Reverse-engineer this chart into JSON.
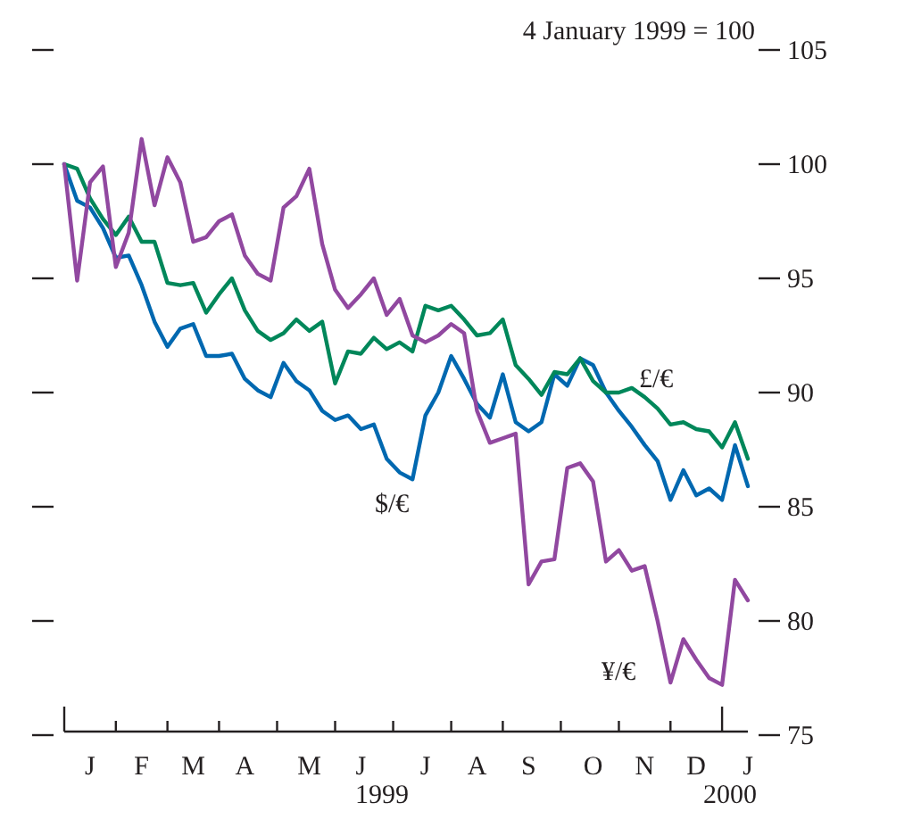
{
  "chart_data": {
    "type": "line",
    "annotations": [
      "4 January 1999 = 100",
      "1999",
      "2000"
    ],
    "categories": [
      null,
      null,
      "J",
      null,
      null,
      null,
      "F",
      null,
      null,
      null,
      "M",
      null,
      null,
      null,
      "A",
      null,
      null,
      null,
      null,
      "M",
      null,
      null,
      null,
      "J",
      null,
      null,
      null,
      null,
      "J",
      null,
      null,
      null,
      "A",
      null,
      null,
      null,
      "S",
      null,
      null,
      null,
      null,
      "O",
      null,
      null,
      null,
      "N",
      null,
      null,
      null,
      "D",
      null,
      null,
      null,
      "J"
    ],
    "ylim": [
      75,
      105
    ],
    "yticks": [
      75,
      80,
      85,
      90,
      95,
      100,
      105
    ],
    "grid": false,
    "legend": false,
    "line_style": "solid",
    "marker": "none",
    "series": [
      {
        "name": "$/€",
        "color": "#0068b0",
        "values": [
          100,
          98.4,
          98.1,
          97.2,
          95.9,
          96,
          94.7,
          93.1,
          92.0,
          92.8,
          93.0,
          91.6,
          91.6,
          91.7,
          90.6,
          90.1,
          89.8,
          91.3,
          90.5,
          90.1,
          89.2,
          88.8,
          89,
          88.4,
          88.6,
          87.1,
          86.5,
          86.2,
          89,
          90.0,
          91.6,
          90.6,
          89.5,
          88.9,
          90.8,
          88.7,
          88.3,
          88.7,
          90.8,
          90.3,
          91.5,
          91.2,
          90,
          89.2,
          88.5,
          87.7,
          87.0,
          85.3,
          86.6,
          85.5,
          85.8,
          85.3,
          87.7,
          85.9
        ]
      },
      {
        "name": "£/€",
        "color": "#00875a",
        "values": [
          100,
          99.8,
          98.5,
          97.6,
          96.9,
          97.7,
          96.6,
          96.6,
          94.8,
          94.7,
          94.8,
          93.5,
          94.3,
          95.0,
          93.6,
          92.7,
          92.3,
          92.6,
          93.2,
          92.7,
          93.1,
          90.4,
          91.8,
          91.7,
          92.4,
          91.9,
          92.2,
          91.8,
          93.8,
          93.6,
          93.8,
          93.2,
          92.5,
          92.6,
          93.2,
          91.2,
          90.6,
          89.9,
          90.9,
          90.8,
          91.5,
          90.5,
          90.0,
          90.0,
          90.2,
          89.8,
          89.3,
          88.6,
          88.7,
          88.4,
          88.3,
          87.6,
          88.7,
          87.1
        ]
      },
      {
        "name": "¥/€",
        "color": "#9148a0",
        "values": [
          100,
          94.9,
          99.2,
          99.9,
          95.5,
          97.0,
          101.1,
          98.2,
          100.3,
          99.2,
          96.6,
          96.8,
          97.5,
          97.8,
          96,
          95.2,
          94.9,
          98.1,
          98.6,
          99.8,
          96.5,
          94.5,
          93.7,
          94.3,
          95.0,
          93.4,
          94.1,
          92.5,
          92.2,
          92.5,
          93.0,
          92.6,
          89.2,
          87.8,
          88.0,
          88.2,
          81.6,
          82.6,
          82.7,
          86.7,
          86.9,
          86.1,
          82.6,
          83.1,
          82.2,
          82.4,
          80,
          77.3,
          79.2,
          78.3,
          77.5,
          77.2,
          81.8,
          80.9
        ]
      }
    ]
  }
}
